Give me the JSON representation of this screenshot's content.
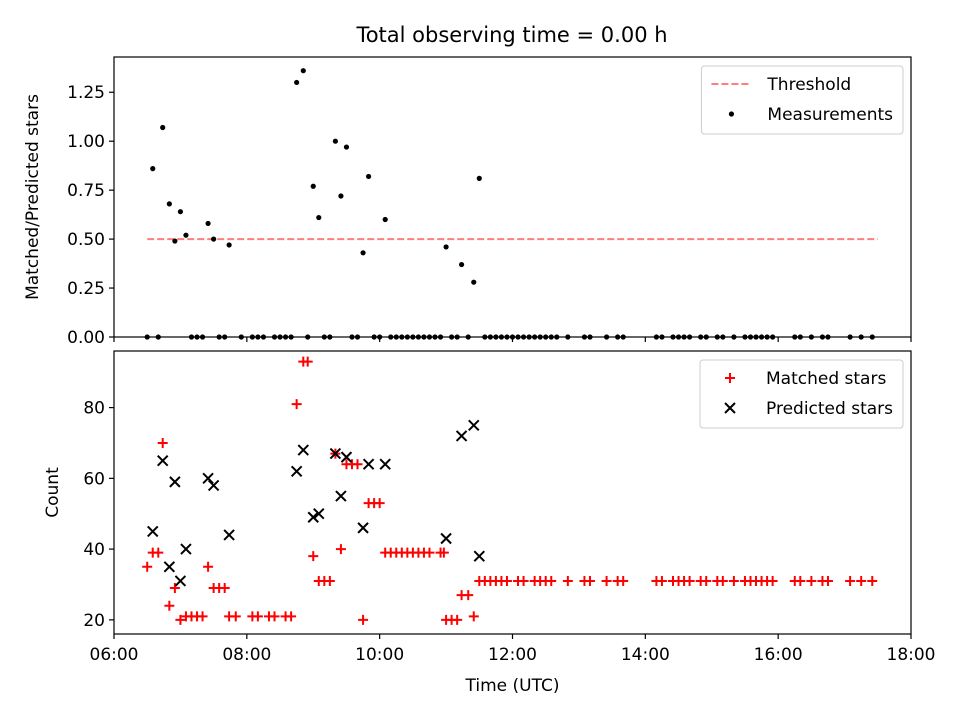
{
  "title": "Total observing time = 0.00 h",
  "chart_data": [
    {
      "type": "scatter",
      "ylabel": "Matched/Predicted stars",
      "ylim": [
        0,
        1.43
      ],
      "yticks": [
        0.0,
        0.25,
        0.5,
        0.75,
        1.0,
        1.25
      ],
      "ytick_labels": [
        "0.00",
        "0.25",
        "0.50",
        "0.75",
        "1.00",
        "1.25"
      ],
      "xlim": [
        "06:00",
        "18:00"
      ],
      "legend_position": "top-right",
      "threshold": {
        "name": "Threshold",
        "value": 0.5,
        "x_range": [
          "06:30",
          "17:30"
        ],
        "color": "#ff7f7f"
      },
      "series": [
        {
          "name": "Measurements",
          "marker": "dot",
          "color": "#000000",
          "points": [
            [
              "06:35",
              0.86
            ],
            [
              "06:44",
              1.07
            ],
            [
              "06:50",
              0.68
            ],
            [
              "06:55",
              0.49
            ],
            [
              "07:00",
              0.64
            ],
            [
              "07:05",
              0.52
            ],
            [
              "07:25",
              0.58
            ],
            [
              "07:30",
              0.5
            ],
            [
              "07:44",
              0.47
            ],
            [
              "08:45",
              1.3
            ],
            [
              "08:51",
              1.36
            ],
            [
              "09:00",
              0.77
            ],
            [
              "09:05",
              0.61
            ],
            [
              "09:20",
              1.0
            ],
            [
              "09:25",
              0.72
            ],
            [
              "09:30",
              0.97
            ],
            [
              "09:45",
              0.43
            ],
            [
              "09:50",
              0.82
            ],
            [
              "10:05",
              0.6
            ],
            [
              "11:00",
              0.46
            ],
            [
              "11:14",
              0.37
            ],
            [
              "11:25",
              0.28
            ],
            [
              "11:30",
              0.81
            ],
            [
              "06:30",
              0
            ],
            [
              "06:40",
              0
            ],
            [
              "07:10",
              0
            ],
            [
              "07:15",
              0
            ],
            [
              "07:20",
              0
            ],
            [
              "07:35",
              0
            ],
            [
              "07:40",
              0
            ],
            [
              "07:55",
              0
            ],
            [
              "08:05",
              0
            ],
            [
              "08:10",
              0
            ],
            [
              "08:15",
              0
            ],
            [
              "08:25",
              0
            ],
            [
              "08:30",
              0
            ],
            [
              "08:35",
              0
            ],
            [
              "08:40",
              0
            ],
            [
              "08:55",
              0
            ],
            [
              "09:10",
              0
            ],
            [
              "09:15",
              0
            ],
            [
              "09:35",
              0
            ],
            [
              "09:40",
              0
            ],
            [
              "09:55",
              0
            ],
            [
              "10:00",
              0
            ],
            [
              "10:10",
              0
            ],
            [
              "10:15",
              0
            ],
            [
              "10:20",
              0
            ],
            [
              "10:25",
              0
            ],
            [
              "10:30",
              0
            ],
            [
              "10:35",
              0
            ],
            [
              "10:40",
              0
            ],
            [
              "10:45",
              0
            ],
            [
              "10:50",
              0
            ],
            [
              "10:55",
              0
            ],
            [
              "11:05",
              0
            ],
            [
              "11:10",
              0
            ],
            [
              "11:20",
              0
            ],
            [
              "11:35",
              0
            ],
            [
              "11:40",
              0
            ],
            [
              "11:45",
              0
            ],
            [
              "11:50",
              0
            ],
            [
              "11:55",
              0
            ],
            [
              "12:00",
              0
            ],
            [
              "12:05",
              0
            ],
            [
              "12:10",
              0
            ],
            [
              "12:15",
              0
            ],
            [
              "12:20",
              0
            ],
            [
              "12:25",
              0
            ],
            [
              "12:30",
              0
            ],
            [
              "12:35",
              0
            ],
            [
              "12:40",
              0
            ],
            [
              "12:50",
              0
            ],
            [
              "13:05",
              0
            ],
            [
              "13:10",
              0
            ],
            [
              "13:25",
              0
            ],
            [
              "13:35",
              0
            ],
            [
              "13:40",
              0
            ],
            [
              "14:10",
              0
            ],
            [
              "14:15",
              0
            ],
            [
              "14:25",
              0
            ],
            [
              "14:30",
              0
            ],
            [
              "14:35",
              0
            ],
            [
              "14:40",
              0
            ],
            [
              "14:50",
              0
            ],
            [
              "14:55",
              0
            ],
            [
              "15:05",
              0
            ],
            [
              "15:10",
              0
            ],
            [
              "15:20",
              0
            ],
            [
              "15:30",
              0
            ],
            [
              "15:35",
              0
            ],
            [
              "15:40",
              0
            ],
            [
              "15:45",
              0
            ],
            [
              "15:50",
              0
            ],
            [
              "15:55",
              0
            ],
            [
              "16:15",
              0
            ],
            [
              "16:20",
              0
            ],
            [
              "16:30",
              0
            ],
            [
              "16:40",
              0
            ],
            [
              "16:45",
              0
            ],
            [
              "17:05",
              0
            ],
            [
              "17:15",
              0
            ],
            [
              "17:25",
              0
            ]
          ]
        }
      ]
    },
    {
      "type": "scatter",
      "xlabel": "Time (UTC)",
      "ylabel": "Count",
      "ylim": [
        16,
        96
      ],
      "yticks": [
        20,
        40,
        60,
        80
      ],
      "ytick_labels": [
        "20",
        "40",
        "60",
        "80"
      ],
      "xlim": [
        "06:00",
        "18:00"
      ],
      "xticks": [
        "06:00",
        "08:00",
        "10:00",
        "12:00",
        "14:00",
        "16:00",
        "18:00"
      ],
      "legend_position": "top-right",
      "series": [
        {
          "name": "Matched stars",
          "marker": "plus",
          "color": "#ff0000",
          "points": [
            [
              "06:30",
              35
            ],
            [
              "06:35",
              39
            ],
            [
              "06:40",
              39
            ],
            [
              "06:44",
              70
            ],
            [
              "06:50",
              24
            ],
            [
              "06:55",
              29
            ],
            [
              "07:00",
              20
            ],
            [
              "07:05",
              21
            ],
            [
              "07:10",
              21
            ],
            [
              "07:15",
              21
            ],
            [
              "07:20",
              21
            ],
            [
              "07:25",
              35
            ],
            [
              "07:30",
              29
            ],
            [
              "07:35",
              29
            ],
            [
              "07:40",
              29
            ],
            [
              "07:44",
              21
            ],
            [
              "07:50",
              21
            ],
            [
              "08:05",
              21
            ],
            [
              "08:10",
              21
            ],
            [
              "08:20",
              21
            ],
            [
              "08:25",
              21
            ],
            [
              "08:35",
              21
            ],
            [
              "08:40",
              21
            ],
            [
              "08:45",
              81
            ],
            [
              "08:51",
              93
            ],
            [
              "08:55",
              93
            ],
            [
              "09:00",
              38
            ],
            [
              "09:05",
              31
            ],
            [
              "09:10",
              31
            ],
            [
              "09:15",
              31
            ],
            [
              "09:20",
              67
            ],
            [
              "09:25",
              40
            ],
            [
              "09:30",
              64
            ],
            [
              "09:35",
              64
            ],
            [
              "09:40",
              64
            ],
            [
              "09:45",
              20
            ],
            [
              "09:50",
              53
            ],
            [
              "09:55",
              53
            ],
            [
              "10:00",
              53
            ],
            [
              "10:05",
              39
            ],
            [
              "10:10",
              39
            ],
            [
              "10:15",
              39
            ],
            [
              "10:20",
              39
            ],
            [
              "10:25",
              39
            ],
            [
              "10:30",
              39
            ],
            [
              "10:35",
              39
            ],
            [
              "10:40",
              39
            ],
            [
              "10:45",
              39
            ],
            [
              "10:55",
              39
            ],
            [
              "10:58",
              39
            ],
            [
              "11:00",
              20
            ],
            [
              "11:05",
              20
            ],
            [
              "11:10",
              20
            ],
            [
              "11:14",
              27
            ],
            [
              "11:20",
              27
            ],
            [
              "11:25",
              21
            ],
            [
              "11:30",
              31
            ],
            [
              "11:35",
              31
            ],
            [
              "11:40",
              31
            ],
            [
              "11:45",
              31
            ],
            [
              "11:50",
              31
            ],
            [
              "11:55",
              31
            ],
            [
              "12:05",
              31
            ],
            [
              "12:10",
              31
            ],
            [
              "12:20",
              31
            ],
            [
              "12:25",
              31
            ],
            [
              "12:30",
              31
            ],
            [
              "12:35",
              31
            ],
            [
              "12:50",
              31
            ],
            [
              "13:05",
              31
            ],
            [
              "13:10",
              31
            ],
            [
              "13:25",
              31
            ],
            [
              "13:35",
              31
            ],
            [
              "13:40",
              31
            ],
            [
              "14:10",
              31
            ],
            [
              "14:15",
              31
            ],
            [
              "14:25",
              31
            ],
            [
              "14:30",
              31
            ],
            [
              "14:35",
              31
            ],
            [
              "14:40",
              31
            ],
            [
              "14:50",
              31
            ],
            [
              "14:55",
              31
            ],
            [
              "15:05",
              31
            ],
            [
              "15:10",
              31
            ],
            [
              "15:20",
              31
            ],
            [
              "15:30",
              31
            ],
            [
              "15:35",
              31
            ],
            [
              "15:40",
              31
            ],
            [
              "15:45",
              31
            ],
            [
              "15:50",
              31
            ],
            [
              "15:55",
              31
            ],
            [
              "16:15",
              31
            ],
            [
              "16:20",
              31
            ],
            [
              "16:30",
              31
            ],
            [
              "16:40",
              31
            ],
            [
              "16:45",
              31
            ],
            [
              "17:05",
              31
            ],
            [
              "17:15",
              31
            ],
            [
              "17:25",
              31
            ]
          ]
        },
        {
          "name": "Predicted stars",
          "marker": "x",
          "color": "#000000",
          "points": [
            [
              "06:35",
              45
            ],
            [
              "06:44",
              65
            ],
            [
              "06:50",
              35
            ],
            [
              "06:55",
              59
            ],
            [
              "07:00",
              31
            ],
            [
              "07:05",
              40
            ],
            [
              "07:25",
              60
            ],
            [
              "07:30",
              58
            ],
            [
              "07:44",
              44
            ],
            [
              "08:45",
              62
            ],
            [
              "08:51",
              68
            ],
            [
              "09:00",
              49
            ],
            [
              "09:05",
              50
            ],
            [
              "09:20",
              67
            ],
            [
              "09:25",
              55
            ],
            [
              "09:30",
              66
            ],
            [
              "09:45",
              46
            ],
            [
              "09:50",
              64
            ],
            [
              "10:05",
              64
            ],
            [
              "11:00",
              43
            ],
            [
              "11:14",
              72
            ],
            [
              "11:25",
              75
            ],
            [
              "11:30",
              38
            ]
          ]
        }
      ]
    }
  ]
}
